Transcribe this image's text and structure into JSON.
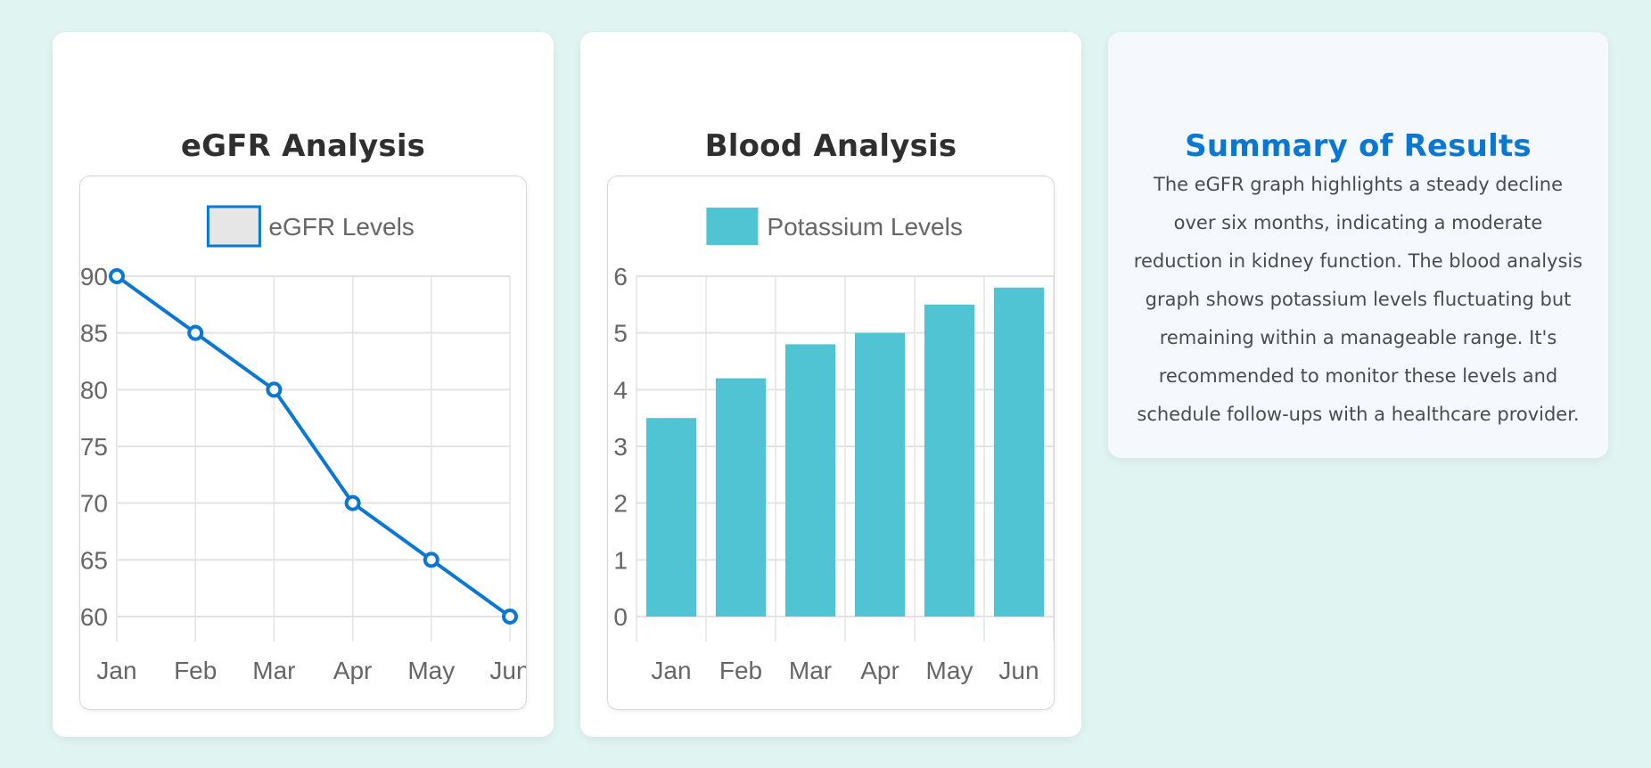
{
  "cards": {
    "egfr": {
      "title": "eGFR Analysis"
    },
    "blood": {
      "title": "Blood Analysis"
    },
    "summary": {
      "title": "Summary of Results",
      "text": "The eGFR graph highlights a steady decline over six months, indicating a moderate reduction in kidney function. The blood analysis graph shows potassium levels fluctuating but remaining within a manageable range. It's recommended to monitor these levels and schedule follow-ups with a healthcare provider."
    }
  },
  "colors": {
    "background": "#e0f5f2",
    "egfr_line": "#0a78d2",
    "egfr_legend_fill": "#e6e6e6",
    "potassium_bar": "#51c4d3",
    "summary_title": "#0a78d2",
    "grid": "#e3e3e3",
    "tick_text": "#666666"
  },
  "chart_data": [
    {
      "type": "line",
      "categories": [
        "Jan",
        "Feb",
        "Mar",
        "Apr",
        "May",
        "Jun"
      ],
      "series": [
        {
          "name": "eGFR Levels",
          "values": [
            90,
            85,
            80,
            70,
            65,
            60
          ]
        }
      ],
      "y_ticks": [
        60,
        65,
        70,
        75,
        80,
        85,
        90
      ],
      "ylim": [
        60,
        90
      ],
      "grid": true,
      "legend": "top-center"
    },
    {
      "type": "bar",
      "categories": [
        "Jan",
        "Feb",
        "Mar",
        "Apr",
        "May",
        "Jun"
      ],
      "series": [
        {
          "name": "Potassium Levels",
          "values": [
            3.5,
            4.2,
            4.8,
            5.0,
            5.5,
            5.8
          ]
        }
      ],
      "y_ticks": [
        0,
        1,
        2,
        3,
        4,
        5,
        6
      ],
      "ylim": [
        0,
        6
      ],
      "grid": true,
      "legend": "top-center"
    }
  ]
}
